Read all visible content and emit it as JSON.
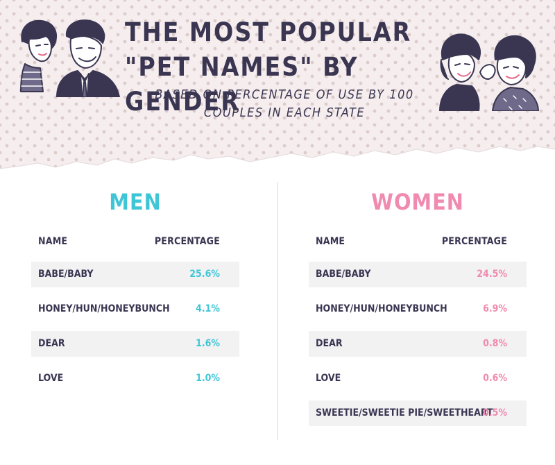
{
  "header": {
    "title": "The Most Popular \"Pet Names\" by Gender",
    "subtitle": "Based on percentage of use by 100 couples in each state"
  },
  "colors": {
    "men": "#3fc6d6",
    "women": "#f08aae",
    "text": "#3a3652"
  },
  "men": {
    "title": "MEN",
    "col_name": "NAME",
    "col_pct": "PERCENTAGE",
    "rows": [
      {
        "name": "BABE/BABY",
        "pct": "25.6%"
      },
      {
        "name": "HONEY/HUN/HONEYBUNCH",
        "pct": "4.1%"
      },
      {
        "name": "DEAR",
        "pct": "1.6%"
      },
      {
        "name": "LOVE",
        "pct": "1.0%"
      }
    ]
  },
  "women": {
    "title": "WOMEN",
    "col_name": "NAME",
    "col_pct": "PERCENTAGE",
    "rows": [
      {
        "name": "BABE/BABY",
        "pct": "24.5%"
      },
      {
        "name": "HONEY/HUN/HONEYBUNCH",
        "pct": "6.9%"
      },
      {
        "name": "DEAR",
        "pct": "0.8%"
      },
      {
        "name": "LOVE",
        "pct": "0.6%"
      },
      {
        "name": "SWEETIE/SWEETIE PIE/SWEETHEART",
        "pct": "0.5%"
      }
    ]
  },
  "illustrations": {
    "left": "retro-couple-illustration",
    "right": "retro-women-whispering-illustration"
  }
}
